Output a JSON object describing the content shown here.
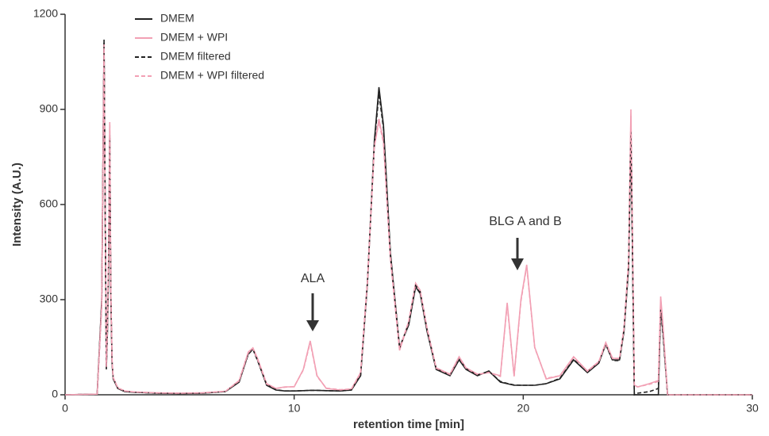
{
  "chart_data": {
    "type": "line",
    "xlabel": "retention time [min]",
    "ylabel": "Intensity (A.U.)",
    "xlim": [
      0,
      30
    ],
    "xticks": [
      0,
      10,
      20,
      30
    ],
    "ylim": [
      0,
      1200
    ],
    "yticks": [
      0,
      300,
      600,
      900,
      1200
    ],
    "grid": false,
    "legend": "upper left",
    "annotations": [
      {
        "text": "ALA"
      },
      {
        "text": "BLG A and B"
      }
    ],
    "x": [
      0,
      1.4,
      1.6,
      1.7,
      1.75,
      1.8,
      1.85,
      1.9,
      1.95,
      2.0,
      2.05,
      2.1,
      2.3,
      2.6,
      3,
      4,
      5,
      6,
      7,
      7.6,
      8.0,
      8.2,
      8.4,
      8.8,
      9.2,
      9.6,
      10.0,
      10.4,
      10.7,
      11.0,
      11.4,
      12.0,
      12.5,
      12.9,
      13.2,
      13.5,
      13.7,
      13.9,
      14.2,
      14.6,
      15.0,
      15.3,
      15.5,
      15.8,
      16.2,
      16.8,
      17.2,
      17.5,
      18.0,
      18.5,
      19.0,
      19.3,
      19.6,
      19.9,
      20.15,
      20.5,
      21.0,
      21.6,
      22.2,
      22.8,
      23.3,
      23.6,
      23.9,
      24.2,
      24.4,
      24.6,
      24.7,
      24.85,
      25.0,
      25.5,
      25.9,
      26.0,
      26.1,
      26.3,
      26.6,
      30
    ],
    "series": [
      {
        "name": "DMEM",
        "color": "#222222",
        "dash": false,
        "values": [
          0,
          2,
          300,
          1120,
          600,
          80,
          200,
          400,
          820,
          300,
          100,
          50,
          20,
          10,
          8,
          5,
          4,
          5,
          10,
          40,
          130,
          145,
          110,
          30,
          15,
          12,
          12,
          13,
          14,
          14,
          13,
          12,
          15,
          60,
          350,
          800,
          970,
          850,
          450,
          150,
          220,
          340,
          320,
          200,
          80,
          60,
          110,
          80,
          60,
          75,
          40,
          35,
          30,
          30,
          30,
          30,
          35,
          50,
          110,
          70,
          100,
          160,
          110,
          110,
          200,
          400,
          840,
          0,
          0,
          0,
          0,
          280,
          200,
          0,
          0,
          0
        ]
      },
      {
        "name": "DMEM + WPI",
        "color": "#f2a0b4",
        "dash": false,
        "values": [
          0,
          2,
          280,
          1100,
          580,
          90,
          220,
          450,
          860,
          320,
          110,
          55,
          22,
          12,
          9,
          6,
          5,
          6,
          11,
          45,
          135,
          148,
          115,
          35,
          20,
          25,
          25,
          80,
          170,
          60,
          20,
          15,
          18,
          70,
          360,
          780,
          870,
          800,
          430,
          140,
          230,
          350,
          330,
          210,
          85,
          65,
          120,
          85,
          65,
          70,
          60,
          290,
          60,
          300,
          410,
          150,
          50,
          60,
          120,
          75,
          105,
          165,
          115,
          115,
          210,
          420,
          900,
          30,
          25,
          35,
          45,
          310,
          220,
          0,
          0,
          0
        ]
      },
      {
        "name": "DMEM filtered",
        "color": "#222222",
        "dash": true,
        "values": [
          0,
          2,
          290,
          1110,
          590,
          85,
          210,
          410,
          810,
          310,
          105,
          52,
          21,
          11,
          8,
          5,
          4,
          5,
          10,
          42,
          128,
          143,
          108,
          32,
          16,
          12,
          12,
          13,
          14,
          14,
          13,
          12,
          15,
          62,
          355,
          790,
          950,
          840,
          440,
          148,
          225,
          345,
          325,
          205,
          82,
          62,
          112,
          82,
          62,
          74,
          42,
          36,
          31,
          30,
          30,
          30,
          35,
          52,
          112,
          72,
          102,
          158,
          108,
          108,
          205,
          410,
          830,
          0,
          5,
          10,
          20,
          270,
          190,
          0,
          0,
          0
        ]
      },
      {
        "name": "DMEM + WPI filtered",
        "color": "#f2a0b4",
        "dash": true,
        "values": [
          0,
          2,
          285,
          1105,
          585,
          88,
          215,
          440,
          850,
          315,
          108,
          54,
          22,
          12,
          9,
          6,
          5,
          6,
          11,
          44,
          133,
          146,
          112,
          34,
          20,
          24,
          26,
          78,
          165,
          58,
          21,
          16,
          18,
          68,
          355,
          785,
          860,
          795,
          435,
          145,
          232,
          352,
          328,
          208,
          84,
          64,
          118,
          84,
          64,
          70,
          58,
          285,
          58,
          295,
          405,
          148,
          52,
          60,
          118,
          74,
          104,
          162,
          114,
          114,
          208,
          415,
          880,
          28,
          25,
          33,
          42,
          300,
          215,
          0,
          0,
          0
        ]
      }
    ]
  }
}
